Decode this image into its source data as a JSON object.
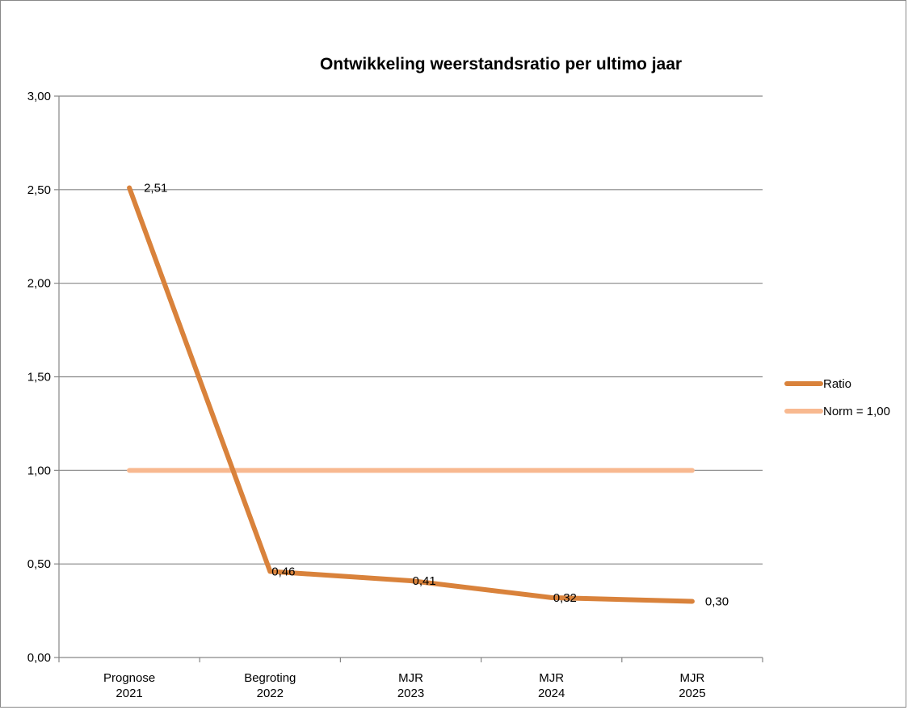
{
  "chart_data": {
    "type": "line",
    "title": "Ontwikkeling weerstandsratio per ultimo jaar",
    "xlabel": "",
    "ylabel": "",
    "ylim": [
      0,
      3
    ],
    "ytick_step": 0.5,
    "ytick_labels": [
      "0,00",
      "0,50",
      "1,00",
      "1,50",
      "2,00",
      "2,50",
      "3,00"
    ],
    "categories": [
      [
        "Prognose",
        "2021"
      ],
      [
        "Begroting",
        "2022"
      ],
      [
        "MJR",
        "2023"
      ],
      [
        "MJR",
        "2024"
      ],
      [
        "MJR",
        "2025"
      ]
    ],
    "grid": true,
    "legend_position": "right",
    "series": [
      {
        "name": "Ratio",
        "values": [
          2.51,
          0.46,
          0.41,
          0.32,
          0.3
        ],
        "data_labels": [
          "2,51",
          "0,46",
          "0,41",
          "0,32",
          "0,30"
        ],
        "color": "#D9823B",
        "stroke_width": 6
      },
      {
        "name": "Norm = 1,00",
        "values": [
          1.0,
          1.0,
          1.0,
          1.0,
          1.0
        ],
        "color": "#F8B990",
        "stroke_width": 6
      }
    ]
  }
}
